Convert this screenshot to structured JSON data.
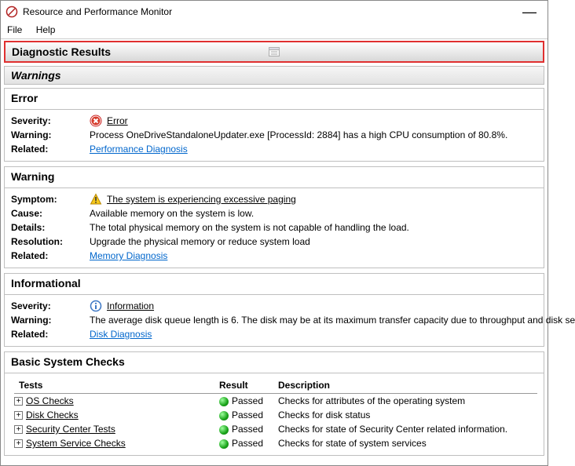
{
  "window": {
    "title": "Resource and Performance Monitor"
  },
  "menu": {
    "file": "File",
    "help": "Help"
  },
  "banner": {
    "title": "Diagnostic Results"
  },
  "warnings_header": "Warnings",
  "error_section": {
    "heading": "Error",
    "severity_label": "Severity:",
    "severity_value": "Error",
    "warning_label": "Warning:",
    "warning_value": "Process OneDriveStandaloneUpdater.exe [ProcessId: 2884] has a high CPU consumption of 80.8%.",
    "related_label": "Related:",
    "related_value": "Performance Diagnosis"
  },
  "warning_section": {
    "heading": "Warning",
    "symptom_label": "Symptom:",
    "symptom_value": "The system is experiencing excessive paging",
    "cause_label": "Cause:",
    "cause_value": "Available memory on the system is low.",
    "details_label": "Details:",
    "details_value": "The total physical memory on the system is not capable of handling the load.",
    "resolution_label": "Resolution:",
    "resolution_value": "Upgrade the physical memory or reduce system load",
    "related_label": "Related:",
    "related_value": "Memory Diagnosis"
  },
  "info_section": {
    "heading": "Informational",
    "severity_label": "Severity:",
    "severity_value": "Information",
    "warning_label": "Warning:",
    "warning_value": "The average disk queue length is 6. The disk may be at its maximum transfer capacity due to throughput and disk se",
    "related_label": "Related:",
    "related_value": "Disk Diagnosis"
  },
  "checks_section": {
    "heading": "Basic System Checks",
    "col_tests": "Tests",
    "col_result": "Result",
    "col_desc": "Description",
    "rows": [
      {
        "test": "OS Checks",
        "result": "Passed",
        "desc": "Checks for attributes of the operating system"
      },
      {
        "test": "Disk Checks",
        "result": "Passed",
        "desc": "Checks for disk status"
      },
      {
        "test": "Security Center Tests",
        "result": "Passed",
        "desc": "Checks for state of Security Center related information."
      },
      {
        "test": "System Service Checks",
        "result": "Passed",
        "desc": "Checks for state of system services"
      }
    ]
  },
  "colors": {
    "banner_border": "#e03030",
    "link": "#0066cc",
    "pass_green": "#19a319",
    "error_red": "#d63a2a",
    "warn_yellow": "#f6c91c",
    "info_blue": "#3b76c4"
  }
}
